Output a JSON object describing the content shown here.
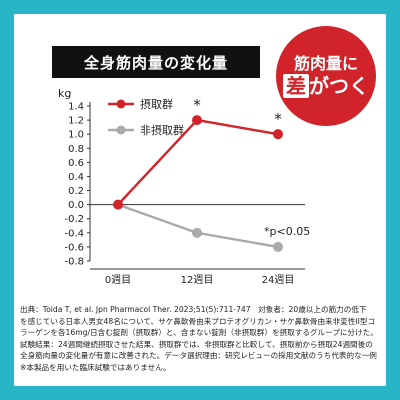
{
  "page": {
    "title": "全身筋肉量の変化量",
    "badge_line1": "筋肉量に",
    "badge_line2_highlight": "差",
    "badge_line2_rest": "がつく",
    "source_lines": [
      "出典：Toida T, et al. Jpn Pharmacol Ther. 2023;51(5):711-747　対象者：20歳以上の筋力の低下",
      "を感じている日本人男女48名について、サケ鼻軟骨由来プロテオグリカン・サケ鼻軟骨由来非変性II型コ",
      "ラーゲンを各16mg/日含む錠剤（摂取群）と、含まない錠剤（非摂取群）を摂取するグループに分けた。",
      "試験結果：24週間継続摂取させた結果、摂取群では、非摂取群と比較して、摂取前から摂取24週間後の",
      "全身筋肉量の変化量が有意に改善された。データ選択理由：研究レビューの採用文献のうち代表的な一例",
      "※本製品を用いた臨床試験ではありません。"
    ]
  },
  "colors": {
    "background": "#29b5c8",
    "intake": "#d1232a",
    "non_intake": "#aaaaaa",
    "title_bar": "#111111"
  },
  "chart_data": {
    "type": "line",
    "ylabel": "kg",
    "categories": [
      "0週目",
      "12週目",
      "24週目"
    ],
    "ylim": [
      -0.8,
      1.4
    ],
    "yticks": [
      1.4,
      1.2,
      1.0,
      0.8,
      0.6,
      0.4,
      0.2,
      0.0,
      -0.2,
      -0.4,
      -0.6,
      -0.8
    ],
    "ytick_labels": [
      "1.4",
      "1.2",
      "1.0",
      "0.8",
      "0.6",
      "0.4",
      "0.2",
      "0.0",
      "-0.2",
      "-0.4",
      "-0.6",
      "-0.8"
    ],
    "legend_placement": "top-left",
    "series": [
      {
        "name": "摂取群",
        "values": [
          0.0,
          1.2,
          1.0
        ],
        "color": "#d1232a",
        "marks": [
          "",
          "*",
          "*"
        ]
      },
      {
        "name": "非摂取群",
        "values": [
          0.0,
          -0.4,
          -0.6
        ],
        "color": "#aaaaaa",
        "marks": [
          "",
          "",
          ""
        ]
      }
    ],
    "annotation": "*p<0.05"
  }
}
